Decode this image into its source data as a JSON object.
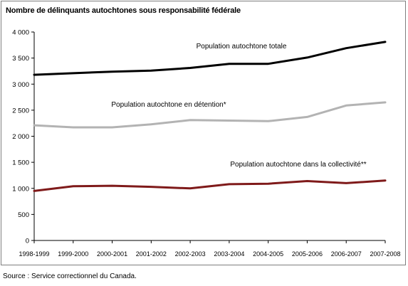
{
  "chart_data": {
    "type": "line",
    "title": "Nombre de délinquants autochtones sous responsabilité fédérale",
    "categories": [
      "1998-1999",
      "1999-2000",
      "2000-2001",
      "2001-2002",
      "2002-2003",
      "2003-2004",
      "2004-2005",
      "2005-2006",
      "2006-2007",
      "2007-2008"
    ],
    "ylim": [
      0,
      4000
    ],
    "yticks": [
      "0",
      "500",
      "1 000",
      "1 500",
      "2 000",
      "2 500",
      "3 000",
      "3 500",
      "4 000"
    ],
    "ytick_values": [
      0,
      500,
      1000,
      1500,
      2000,
      2500,
      3000,
      3500,
      4000
    ],
    "grid": false,
    "series": [
      {
        "name": "Population autochtone totale",
        "color": "#000000",
        "values": [
          3180,
          3210,
          3240,
          3260,
          3310,
          3390,
          3390,
          3510,
          3690,
          3810
        ]
      },
      {
        "name": "Population autochtone en détention*",
        "color": "#b3b3b3",
        "values": [
          2210,
          2170,
          2170,
          2230,
          2310,
          2300,
          2290,
          2370,
          2590,
          2650
        ]
      },
      {
        "name": "Population autochtone dans la collectivité**",
        "color": "#7f1a1a",
        "values": [
          950,
          1040,
          1050,
          1030,
          1000,
          1080,
          1090,
          1140,
          1100,
          1150
        ]
      }
    ]
  },
  "source": "Source : Service correctionnel du Canada."
}
